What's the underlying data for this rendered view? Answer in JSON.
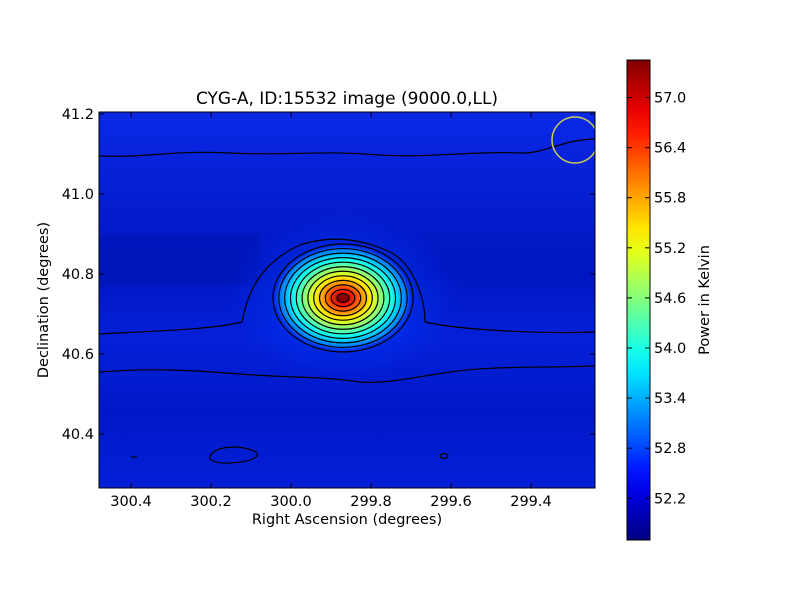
{
  "chart_data": {
    "type": "heatmap",
    "title": "CYG-A, ID:15532 image (9000.0,LL)",
    "xlabel": "Right Ascension (degrees)",
    "ylabel": "Declination (degrees)",
    "xlim": [
      300.48,
      299.24
    ],
    "ylim": [
      40.265,
      41.205
    ],
    "x_ticks": [
      {
        "value": 300.4,
        "label": "300.4"
      },
      {
        "value": 300.2,
        "label": "300.2"
      },
      {
        "value": 300.0,
        "label": "300.0"
      },
      {
        "value": 299.8,
        "label": "299.8"
      },
      {
        "value": 299.6,
        "label": "299.6"
      },
      {
        "value": 299.4,
        "label": "299.4"
      }
    ],
    "y_ticks": [
      {
        "value": 40.4,
        "label": "40.4"
      },
      {
        "value": 40.6,
        "label": "40.6"
      },
      {
        "value": 40.8,
        "label": "40.8"
      },
      {
        "value": 41.0,
        "label": "41.0"
      },
      {
        "value": 41.2,
        "label": "41.2"
      }
    ],
    "colorbar": {
      "label": "Power in Kelvin",
      "range": [
        51.7,
        57.45
      ],
      "colormap": "jet",
      "ticks": [
        {
          "value": 52.2,
          "label": "52.2"
        },
        {
          "value": 52.8,
          "label": "52.8"
        },
        {
          "value": 53.4,
          "label": "53.4"
        },
        {
          "value": 54.0,
          "label": "54.0"
        },
        {
          "value": 54.6,
          "label": "54.6"
        },
        {
          "value": 55.2,
          "label": "55.2"
        },
        {
          "value": 55.8,
          "label": "55.8"
        },
        {
          "value": 56.4,
          "label": "56.4"
        },
        {
          "value": 57.0,
          "label": "57.0"
        }
      ]
    },
    "source": {
      "ra": 299.87,
      "dec": 40.74,
      "peak_value": 57.4,
      "background_value": 52.0
    },
    "contour_lines": true,
    "beam_marker": {
      "ra": 299.29,
      "dec": 41.135,
      "color": "#c8c85a"
    },
    "grid": false
  }
}
